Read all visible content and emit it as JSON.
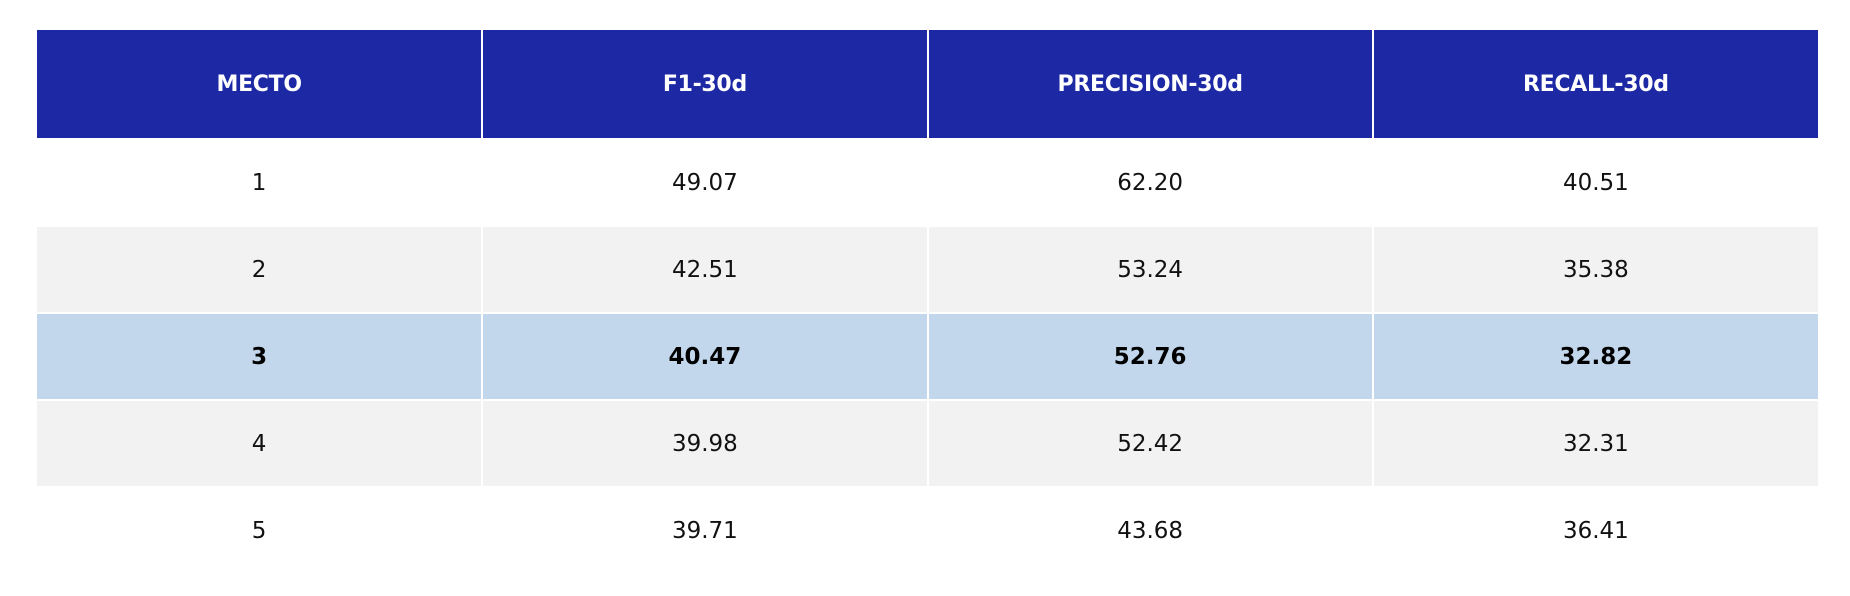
{
  "table": {
    "header": [
      "MECTO",
      "F1-30d",
      "PRECISION-30d",
      "RECALL-30d"
    ],
    "rows": [
      [
        "1",
        "49.07",
        "62.20",
        "40.51"
      ],
      [
        "2",
        "42.51",
        "53.24",
        "35.38"
      ],
      [
        "3",
        "40.47",
        "52.76",
        "32.82"
      ],
      [
        "4",
        "39.98",
        "52.42",
        "32.31"
      ],
      [
        "5",
        "39.71",
        "43.68",
        "36.41"
      ]
    ]
  }
}
